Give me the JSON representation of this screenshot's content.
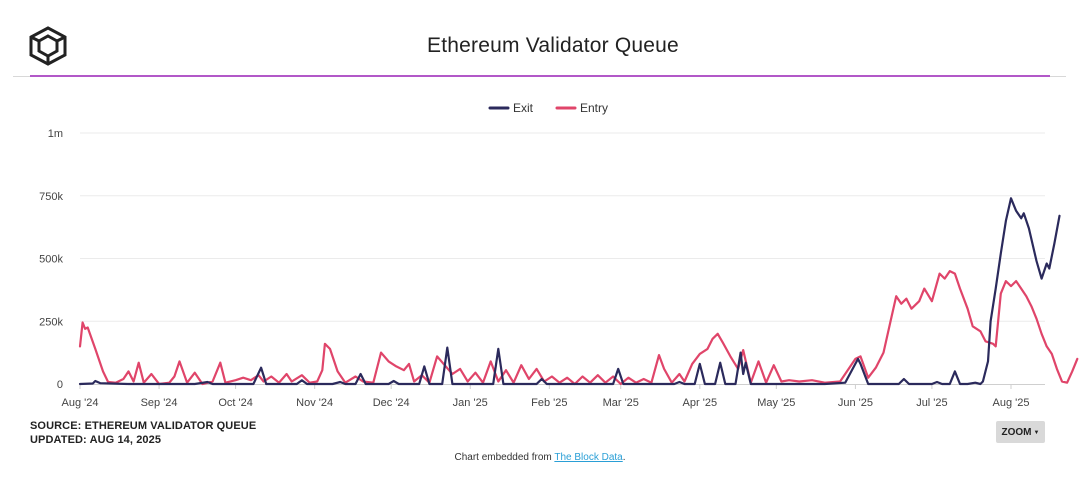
{
  "header": {
    "title": "Ethereum Validator Queue",
    "logo_icon": "the-block-cube-logo",
    "accent_color": "#b258c8"
  },
  "footer": {
    "source_label": "SOURCE: ETHEREUM VALIDATOR QUEUE",
    "updated_label": "UPDATED: AUG 14, 2025",
    "zoom_label": "ZOOM",
    "zoom_icon": "caret-down-icon",
    "embed_prefix": "Chart embedded from ",
    "embed_link": "The Block Data",
    "embed_suffix": "."
  },
  "chart_data": {
    "type": "line",
    "title": "Ethereum Validator Queue",
    "xlabel": "",
    "ylabel": "",
    "ylim": [
      0,
      1000000
    ],
    "yticks": [
      0,
      250000,
      500000,
      750000,
      1000000
    ],
    "ytick_labels": [
      "0",
      "250k",
      "500k",
      "750k",
      "1m"
    ],
    "xlim": [
      "2024-08-01",
      "2025-08-14"
    ],
    "xtick_labels": [
      "Aug '24",
      "Sep '24",
      "Oct '24",
      "Nov '24",
      "Dec '24",
      "Jan '25",
      "Feb '25",
      "Mar '25",
      "Apr '25",
      "May '25",
      "Jun '25",
      "Jul '25",
      "Aug '25"
    ],
    "xtick_dates": [
      "2024-08-01",
      "2024-09-01",
      "2024-10-01",
      "2024-11-01",
      "2024-12-01",
      "2025-01-01",
      "2025-02-01",
      "2025-03-01",
      "2025-04-01",
      "2025-05-01",
      "2025-06-01",
      "2025-07-01",
      "2025-08-01"
    ],
    "grid": true,
    "legend_position": "top-center",
    "series": [
      {
        "name": "Exit",
        "color": "#2b2a5c",
        "points": [
          [
            "2024-08-01",
            0
          ],
          [
            "2024-08-06",
            2000
          ],
          [
            "2024-08-07",
            12000
          ],
          [
            "2024-08-09",
            3000
          ],
          [
            "2024-08-20",
            0
          ],
          [
            "2024-09-15",
            0
          ],
          [
            "2024-09-20",
            8000
          ],
          [
            "2024-09-22",
            0
          ],
          [
            "2024-10-08",
            0
          ],
          [
            "2024-10-11",
            65000
          ],
          [
            "2024-10-13",
            0
          ],
          [
            "2024-10-25",
            0
          ],
          [
            "2024-10-27",
            15000
          ],
          [
            "2024-10-29",
            0
          ],
          [
            "2024-11-08",
            0
          ],
          [
            "2024-11-11",
            8000
          ],
          [
            "2024-11-13",
            0
          ],
          [
            "2024-11-17",
            0
          ],
          [
            "2024-11-19",
            40000
          ],
          [
            "2024-11-21",
            0
          ],
          [
            "2024-11-30",
            0
          ],
          [
            "2024-12-02",
            12000
          ],
          [
            "2024-12-04",
            0
          ],
          [
            "2024-12-12",
            0
          ],
          [
            "2024-12-14",
            70000
          ],
          [
            "2024-12-16",
            0
          ],
          [
            "2024-12-21",
            0
          ],
          [
            "2024-12-23",
            145000
          ],
          [
            "2024-12-25",
            0
          ],
          [
            "2025-01-10",
            0
          ],
          [
            "2025-01-12",
            140000
          ],
          [
            "2025-01-14",
            0
          ],
          [
            "2025-01-27",
            0
          ],
          [
            "2025-01-29",
            20000
          ],
          [
            "2025-01-31",
            0
          ],
          [
            "2025-02-26",
            0
          ],
          [
            "2025-02-28",
            60000
          ],
          [
            "2025-03-02",
            0
          ],
          [
            "2025-03-22",
            0
          ],
          [
            "2025-03-24",
            8000
          ],
          [
            "2025-03-26",
            0
          ],
          [
            "2025-03-30",
            0
          ],
          [
            "2025-04-01",
            80000
          ],
          [
            "2025-04-03",
            0
          ],
          [
            "2025-04-07",
            0
          ],
          [
            "2025-04-09",
            85000
          ],
          [
            "2025-04-11",
            0
          ],
          [
            "2025-04-15",
            0
          ],
          [
            "2025-04-17",
            125000
          ],
          [
            "2025-04-18",
            40000
          ],
          [
            "2025-04-19",
            85000
          ],
          [
            "2025-04-21",
            0
          ],
          [
            "2025-05-20",
            0
          ],
          [
            "2025-05-28",
            5000
          ],
          [
            "2025-06-02",
            100000
          ],
          [
            "2025-06-03",
            80000
          ],
          [
            "2025-06-06",
            0
          ],
          [
            "2025-06-18",
            0
          ],
          [
            "2025-06-20",
            20000
          ],
          [
            "2025-06-22",
            0
          ],
          [
            "2025-07-01",
            0
          ],
          [
            "2025-07-03",
            8000
          ],
          [
            "2025-07-05",
            0
          ],
          [
            "2025-07-08",
            0
          ],
          [
            "2025-07-10",
            50000
          ],
          [
            "2025-07-12",
            0
          ],
          [
            "2025-07-15",
            0
          ],
          [
            "2025-07-18",
            5000
          ],
          [
            "2025-07-20",
            0
          ],
          [
            "2025-07-21",
            10000
          ],
          [
            "2025-07-23",
            90000
          ],
          [
            "2025-07-24",
            250000
          ],
          [
            "2025-07-26",
            380000
          ],
          [
            "2025-07-28",
            520000
          ],
          [
            "2025-07-30",
            650000
          ],
          [
            "2025-08-01",
            740000
          ],
          [
            "2025-08-03",
            690000
          ],
          [
            "2025-08-05",
            660000
          ],
          [
            "2025-08-06",
            680000
          ],
          [
            "2025-08-08",
            620000
          ],
          [
            "2025-08-11",
            490000
          ],
          [
            "2025-08-13",
            420000
          ],
          [
            "2025-08-15",
            480000
          ],
          [
            "2025-08-16",
            460000
          ],
          [
            "2025-08-18",
            560000
          ],
          [
            "2025-08-20",
            670000
          ]
        ]
      },
      {
        "name": "Entry",
        "color": "#e0456a",
        "points": [
          [
            "2024-08-01",
            150000
          ],
          [
            "2024-08-02",
            245000
          ],
          [
            "2024-08-03",
            220000
          ],
          [
            "2024-08-04",
            225000
          ],
          [
            "2024-08-07",
            140000
          ],
          [
            "2024-08-10",
            50000
          ],
          [
            "2024-08-12",
            8000
          ],
          [
            "2024-08-15",
            5000
          ],
          [
            "2024-08-18",
            20000
          ],
          [
            "2024-08-20",
            50000
          ],
          [
            "2024-08-22",
            10000
          ],
          [
            "2024-08-24",
            85000
          ],
          [
            "2024-08-26",
            5000
          ],
          [
            "2024-08-29",
            40000
          ],
          [
            "2024-09-01",
            0
          ],
          [
            "2024-09-05",
            5000
          ],
          [
            "2024-09-07",
            30000
          ],
          [
            "2024-09-09",
            90000
          ],
          [
            "2024-09-12",
            5000
          ],
          [
            "2024-09-15",
            45000
          ],
          [
            "2024-09-18",
            0
          ],
          [
            "2024-09-22",
            10000
          ],
          [
            "2024-09-25",
            85000
          ],
          [
            "2024-09-27",
            5000
          ],
          [
            "2024-10-01",
            15000
          ],
          [
            "2024-10-04",
            25000
          ],
          [
            "2024-10-07",
            15000
          ],
          [
            "2024-10-10",
            35000
          ],
          [
            "2024-10-12",
            10000
          ],
          [
            "2024-10-15",
            30000
          ],
          [
            "2024-10-18",
            5000
          ],
          [
            "2024-10-21",
            40000
          ],
          [
            "2024-10-23",
            10000
          ],
          [
            "2024-10-27",
            35000
          ],
          [
            "2024-10-30",
            5000
          ],
          [
            "2024-11-02",
            10000
          ],
          [
            "2024-11-04",
            55000
          ],
          [
            "2024-11-05",
            160000
          ],
          [
            "2024-11-07",
            140000
          ],
          [
            "2024-11-10",
            50000
          ],
          [
            "2024-11-13",
            5000
          ],
          [
            "2024-11-17",
            30000
          ],
          [
            "2024-11-20",
            10000
          ],
          [
            "2024-11-24",
            5000
          ],
          [
            "2024-11-27",
            125000
          ],
          [
            "2024-11-30",
            90000
          ],
          [
            "2024-12-03",
            70000
          ],
          [
            "2024-12-06",
            55000
          ],
          [
            "2024-12-08",
            80000
          ],
          [
            "2024-12-10",
            10000
          ],
          [
            "2024-12-13",
            35000
          ],
          [
            "2024-12-16",
            5000
          ],
          [
            "2024-12-19",
            110000
          ],
          [
            "2024-12-22",
            75000
          ],
          [
            "2024-12-25",
            40000
          ],
          [
            "2024-12-28",
            60000
          ],
          [
            "2024-12-31",
            10000
          ],
          [
            "2025-01-03",
            45000
          ],
          [
            "2025-01-06",
            5000
          ],
          [
            "2025-01-09",
            90000
          ],
          [
            "2025-01-12",
            10000
          ],
          [
            "2025-01-15",
            55000
          ],
          [
            "2025-01-18",
            5000
          ],
          [
            "2025-01-21",
            75000
          ],
          [
            "2025-01-24",
            20000
          ],
          [
            "2025-01-27",
            60000
          ],
          [
            "2025-01-30",
            10000
          ],
          [
            "2025-02-02",
            30000
          ],
          [
            "2025-02-05",
            5000
          ],
          [
            "2025-02-08",
            25000
          ],
          [
            "2025-02-11",
            0
          ],
          [
            "2025-02-14",
            30000
          ],
          [
            "2025-02-17",
            5000
          ],
          [
            "2025-02-20",
            35000
          ],
          [
            "2025-02-23",
            5000
          ],
          [
            "2025-02-26",
            30000
          ],
          [
            "2025-03-01",
            0
          ],
          [
            "2025-03-04",
            25000
          ],
          [
            "2025-03-07",
            5000
          ],
          [
            "2025-03-10",
            20000
          ],
          [
            "2025-03-13",
            5000
          ],
          [
            "2025-03-16",
            115000
          ],
          [
            "2025-03-18",
            60000
          ],
          [
            "2025-03-21",
            5000
          ],
          [
            "2025-03-24",
            40000
          ],
          [
            "2025-03-26",
            10000
          ],
          [
            "2025-03-29",
            80000
          ],
          [
            "2025-04-01",
            120000
          ],
          [
            "2025-04-04",
            140000
          ],
          [
            "2025-04-06",
            180000
          ],
          [
            "2025-04-08",
            200000
          ],
          [
            "2025-04-10",
            165000
          ],
          [
            "2025-04-13",
            110000
          ],
          [
            "2025-04-16",
            60000
          ],
          [
            "2025-04-18",
            135000
          ],
          [
            "2025-04-21",
            5000
          ],
          [
            "2025-04-24",
            90000
          ],
          [
            "2025-04-27",
            5000
          ],
          [
            "2025-04-30",
            75000
          ],
          [
            "2025-05-03",
            10000
          ],
          [
            "2025-05-06",
            15000
          ],
          [
            "2025-05-10",
            10000
          ],
          [
            "2025-05-15",
            15000
          ],
          [
            "2025-05-20",
            5000
          ],
          [
            "2025-05-26",
            10000
          ],
          [
            "2025-06-01",
            100000
          ],
          [
            "2025-06-03",
            110000
          ],
          [
            "2025-06-06",
            25000
          ],
          [
            "2025-06-09",
            65000
          ],
          [
            "2025-06-12",
            125000
          ],
          [
            "2025-06-15",
            260000
          ],
          [
            "2025-06-17",
            350000
          ],
          [
            "2025-06-19",
            320000
          ],
          [
            "2025-06-21",
            340000
          ],
          [
            "2025-06-23",
            300000
          ],
          [
            "2025-06-26",
            330000
          ],
          [
            "2025-06-28",
            380000
          ],
          [
            "2025-07-01",
            330000
          ],
          [
            "2025-07-04",
            440000
          ],
          [
            "2025-07-06",
            420000
          ],
          [
            "2025-07-08",
            450000
          ],
          [
            "2025-07-10",
            440000
          ],
          [
            "2025-07-12",
            380000
          ],
          [
            "2025-07-15",
            300000
          ],
          [
            "2025-07-17",
            230000
          ],
          [
            "2025-07-20",
            210000
          ],
          [
            "2025-07-22",
            170000
          ],
          [
            "2025-07-25",
            160000
          ],
          [
            "2025-07-26",
            150000
          ],
          [
            "2025-07-28",
            360000
          ],
          [
            "2025-07-30",
            410000
          ],
          [
            "2025-08-01",
            390000
          ],
          [
            "2025-08-03",
            410000
          ],
          [
            "2025-08-05",
            380000
          ],
          [
            "2025-08-07",
            350000
          ],
          [
            "2025-08-09",
            310000
          ],
          [
            "2025-08-11",
            260000
          ],
          [
            "2025-08-13",
            200000
          ],
          [
            "2025-08-15",
            150000
          ],
          [
            "2025-08-17",
            120000
          ],
          [
            "2025-08-19",
            60000
          ],
          [
            "2025-08-21",
            10000
          ],
          [
            "2025-08-23",
            5000
          ],
          [
            "2025-08-25",
            50000
          ],
          [
            "2025-08-27",
            100000
          ]
        ]
      }
    ]
  }
}
